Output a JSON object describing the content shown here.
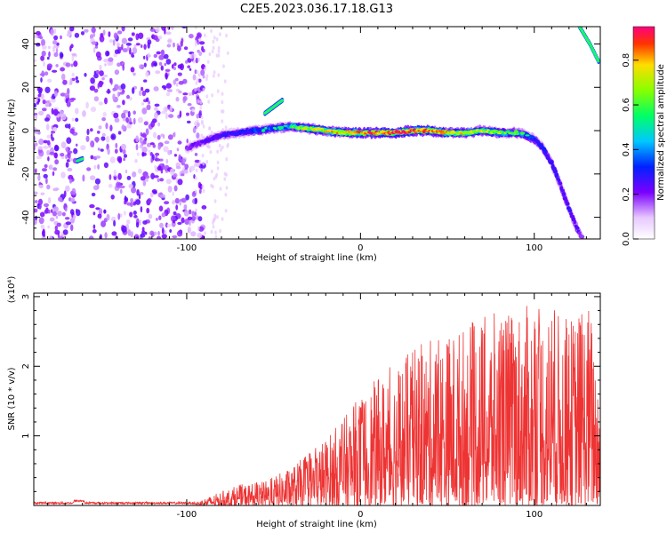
{
  "figure": {
    "title": "C2E5.2023.036.17.18.G13"
  },
  "chart_data": [
    {
      "type": "heatmap",
      "name": "spectrogram",
      "xlabel": "Height of straight line (km)",
      "ylabel": "Frequency (Hz)",
      "xlim": [
        -188,
        138
      ],
      "ylim": [
        -50,
        48
      ],
      "xticks": [
        -100,
        0,
        100
      ],
      "yticks": [
        -40,
        -20,
        0,
        20,
        40
      ],
      "colorbar": {
        "label": "Normalized spectral amplitude",
        "range": [
          0.0,
          0.95
        ],
        "ticks": [
          0.0,
          0.2,
          0.4,
          0.6,
          0.8
        ],
        "tick_labels": [
          "0.0",
          "0.2",
          "0.4",
          "0.6",
          "0.8"
        ]
      },
      "ridge": {
        "description": "main Doppler trace frequency (Hz) vs height (km)",
        "x": [
          -100,
          -90,
          -80,
          -70,
          -60,
          -50,
          -40,
          -30,
          -20,
          -10,
          0,
          10,
          20,
          30,
          40,
          50,
          60,
          70,
          80,
          90,
          95,
          100,
          105,
          110,
          115,
          120,
          125,
          128
        ],
        "y": [
          -8,
          -5,
          -2,
          -1,
          0,
          1,
          2,
          1,
          0,
          -1,
          -1,
          -1,
          -1,
          0,
          0,
          -1,
          -1,
          0,
          -1,
          -1,
          -2,
          -4,
          -8,
          -15,
          -25,
          -36,
          -46,
          -50
        ],
        "amplitude": [
          0.3,
          0.35,
          0.4,
          0.45,
          0.5,
          0.55,
          0.6,
          0.75,
          0.8,
          0.85,
          0.9,
          0.92,
          0.95,
          0.95,
          0.9,
          0.85,
          0.8,
          0.75,
          0.7,
          0.6,
          0.55,
          0.5,
          0.45,
          0.45,
          0.4,
          0.4,
          0.35,
          0.3
        ]
      },
      "secondary_features": [
        {
          "description": "short branch above ridge",
          "x": [
            -55,
            -50,
            -45
          ],
          "y": [
            8,
            11,
            14
          ]
        },
        {
          "description": "isolated blob",
          "x": [
            -163,
            -160
          ],
          "y": [
            -14,
            -13
          ]
        },
        {
          "description": "trace entering upper-right corner",
          "x": [
            126,
            132,
            137
          ],
          "y": [
            48,
            40,
            32
          ]
        }
      ]
    },
    {
      "type": "line",
      "name": "snr",
      "xlabel": "Height of straight line (km)",
      "ylabel": "SNR (10 * v/v)",
      "y_multiplier": "(x10⁴)",
      "xlim": [
        -188,
        138
      ],
      "ylim": [
        0,
        3.05
      ],
      "xticks": [
        -100,
        0,
        100
      ],
      "yticks": [
        1,
        2,
        3
      ],
      "color": "#ee3333",
      "envelope": {
        "description": "approximate upper envelope of SNR (x10^4) vs height (km)",
        "x": [
          -188,
          -160,
          -120,
          -95,
          -85,
          -70,
          -55,
          -40,
          -25,
          -10,
          0,
          15,
          30,
          45,
          60,
          75,
          90,
          105,
          120,
          132,
          138
        ],
        "y": [
          0.03,
          0.05,
          0.04,
          0.05,
          0.15,
          0.3,
          0.35,
          0.55,
          0.85,
          1.25,
          1.6,
          1.95,
          2.25,
          2.45,
          2.6,
          2.75,
          2.85,
          2.9,
          2.7,
          2.95,
          1.8
        ]
      }
    }
  ]
}
